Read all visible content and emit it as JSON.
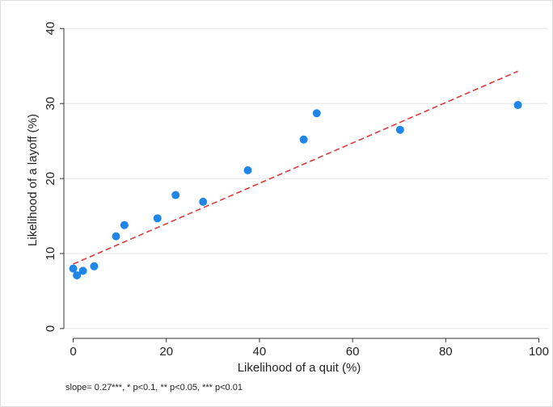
{
  "chart_data": {
    "type": "scatter",
    "x_label": "Likelihood of a quit (%)",
    "y_label": "Likelihood of a layoff (%)",
    "note": "slope=  0.27***, * p<0.1, ** p<0.05, *** p<0.01",
    "series": [
      {
        "color": "#1f86e8",
        "x": [
          0,
          0.8,
          2.1,
          4.5,
          9.2,
          11.0,
          18.1,
          22.0,
          27.9,
          37.5,
          49.5,
          52.3,
          70.2,
          95.5
        ],
        "values": [
          8.0,
          7.1,
          7.7,
          8.3,
          12.3,
          13.8,
          14.7,
          17.8,
          16.9,
          21.1,
          25.2,
          28.7,
          26.5,
          29.8
        ]
      }
    ],
    "fit_line": {
      "color": "#e03a3a",
      "x": [
        0,
        95.5
      ],
      "values": [
        8.6,
        34.3
      ]
    },
    "xlim": [
      -2,
      102
    ],
    "xticks": [
      0,
      20,
      40,
      60,
      80,
      100
    ],
    "ylim": [
      -1.3,
      41
    ],
    "yticks": [
      0,
      10,
      20,
      30,
      40
    ],
    "grid": true
  }
}
